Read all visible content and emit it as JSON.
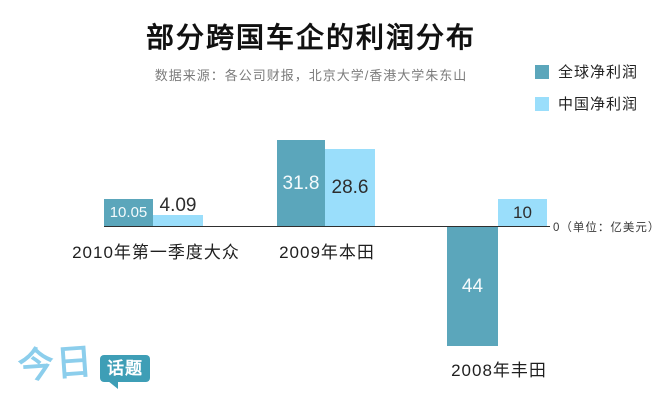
{
  "header": {
    "title": "部分跨国车企的利润分布",
    "source": "数据来源：各公司财报，北京大学/香港大学朱东山"
  },
  "legend": {
    "items": [
      {
        "label": "全球净利润",
        "color": "#5ba6bb"
      },
      {
        "label": "中国净利润",
        "color": "#9adefb"
      }
    ]
  },
  "axis": {
    "zero_label": "0（单位：亿美元）"
  },
  "chart_data": {
    "type": "bar",
    "title": "部分跨国车企的利润分布",
    "unit": "亿美元",
    "categories": [
      "2010年第一季度大众",
      "2009年本田",
      "2008年丰田"
    ],
    "series": [
      {
        "name": "全球净利润",
        "color": "#5ba6bb",
        "values": [
          10.05,
          31.8,
          -44
        ]
      },
      {
        "name": "中国净利润",
        "color": "#9adefb",
        "values": [
          4.09,
          28.6,
          10
        ]
      }
    ],
    "value_labels": [
      [
        "10.05",
        "4.09"
      ],
      [
        "31.8",
        "28.6"
      ],
      [
        "44",
        "10"
      ]
    ],
    "baseline": 0,
    "ylim": [
      -48,
      36
    ],
    "grid": false,
    "legend_position": "top-right"
  },
  "colors": {
    "global_series": "#5ba6bb",
    "china_series": "#9adefb",
    "logo_script": "#8cceec",
    "logo_bubble": "#3e9eb6"
  },
  "logo": {
    "part1": "今日",
    "part2": "话题"
  }
}
